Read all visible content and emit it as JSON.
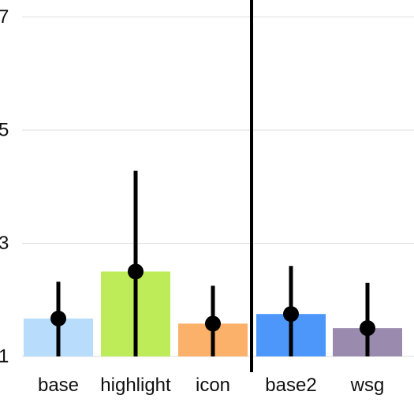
{
  "chart_data": {
    "type": "bar",
    "title": "",
    "xlabel": "",
    "ylabel": "",
    "categories": [
      "base",
      "highlight",
      "icon",
      "base2",
      "wsg"
    ],
    "values": [
      1.67,
      2.5,
      1.58,
      1.75,
      1.5
    ],
    "error_low": [
      1.0,
      1.0,
      1.0,
      1.0,
      1.0
    ],
    "error_high": [
      2.32,
      4.28,
      2.25,
      2.6,
      2.3
    ],
    "colors": [
      "#b8dcfb",
      "#bdec58",
      "#fbb169",
      "#4d97fb",
      "#9a8aad"
    ],
    "ylim": [
      1,
      7.3
    ],
    "yticks": [
      1,
      3,
      5,
      7
    ],
    "ytick_labels": [
      "1",
      "3",
      "5",
      "7"
    ],
    "grid": true,
    "separator_after_index": 2,
    "marker_color": "#000000",
    "grid_color": "#dddddd"
  }
}
